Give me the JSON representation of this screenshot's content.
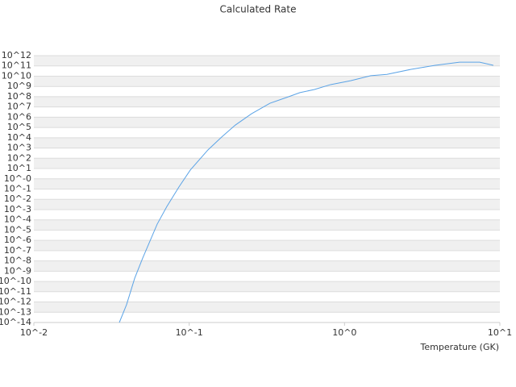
{
  "chart_data": {
    "type": "line",
    "title": "Calculated Rate",
    "x_label": "Temperature (GK)",
    "log_x": true,
    "log_y": true,
    "grid": true,
    "xlim": [
      0.01,
      10
    ],
    "ylim": [
      1e-14,
      1000000000000.0
    ],
    "xticks": [
      {
        "value": 0.01,
        "label": "10^-2"
      },
      {
        "value": 0.1,
        "label": "10^-1"
      },
      {
        "value": 1,
        "label": "10^0"
      },
      {
        "value": 10,
        "label": "10^1"
      }
    ],
    "yticks": [
      {
        "value": 1e-14,
        "label": "10^-14"
      },
      {
        "value": 1e-13,
        "label": "10^-13"
      },
      {
        "value": 1e-12,
        "label": "10^-12"
      },
      {
        "value": 1e-11,
        "label": "10^-11"
      },
      {
        "value": 1e-10,
        "label": "10^-10"
      },
      {
        "value": 1e-09,
        "label": "10^-9"
      },
      {
        "value": 1e-08,
        "label": "10^-8"
      },
      {
        "value": 1e-07,
        "label": "10^-7"
      },
      {
        "value": 1e-06,
        "label": "10^-6"
      },
      {
        "value": 1e-05,
        "label": "10^-5"
      },
      {
        "value": 0.0001,
        "label": "10^-4"
      },
      {
        "value": 0.001,
        "label": "10^-3"
      },
      {
        "value": 0.01,
        "label": "10^-2"
      },
      {
        "value": 0.1,
        "label": "10^-1"
      },
      {
        "value": 1,
        "label": "10^-0"
      },
      {
        "value": 10,
        "label": "10^1"
      },
      {
        "value": 100,
        "label": "10^2"
      },
      {
        "value": 1000.0,
        "label": "10^3"
      },
      {
        "value": 10000.0,
        "label": "10^4"
      },
      {
        "value": 100000.0,
        "label": "10^5"
      },
      {
        "value": 1000000.0,
        "label": "10^6"
      },
      {
        "value": 10000000.0,
        "label": "10^7"
      },
      {
        "value": 100000000.0,
        "label": "10^8"
      },
      {
        "value": 1000000000.0,
        "label": "10^9"
      },
      {
        "value": 10000000000.0,
        "label": "10^10"
      },
      {
        "value": 100000000000.0,
        "label": "10^11"
      },
      {
        "value": 1000000000000.0,
        "label": "10^12"
      }
    ],
    "x": [
      0.0355,
      0.0395,
      0.0446,
      0.0502,
      0.0622,
      0.0718,
      0.0859,
      0.1016,
      0.132,
      0.162,
      0.198,
      0.252,
      0.331,
      0.436,
      0.516,
      0.64,
      0.813,
      1.094,
      1.475,
      1.875,
      2.68,
      3.84,
      5.5,
      7.41,
      9.08
    ],
    "series": [
      {
        "color": "#5ba3e6",
        "values": [
          1e-14,
          5.4e-13,
          2.1e-10,
          1.9e-08,
          3.8e-05,
          0.002,
          0.16,
          7.1,
          650,
          12000.0,
          170000.0,
          2200000.0,
          23000000.0,
          98000000.0,
          250000000.0,
          500000000.0,
          1500000000.0,
          3600000000.0,
          11000000000.0,
          15000000000.0,
          46000000000.0,
          115000000000.0,
          230000000000.0,
          230000000000.0,
          115000000000.0
        ]
      }
    ]
  }
}
